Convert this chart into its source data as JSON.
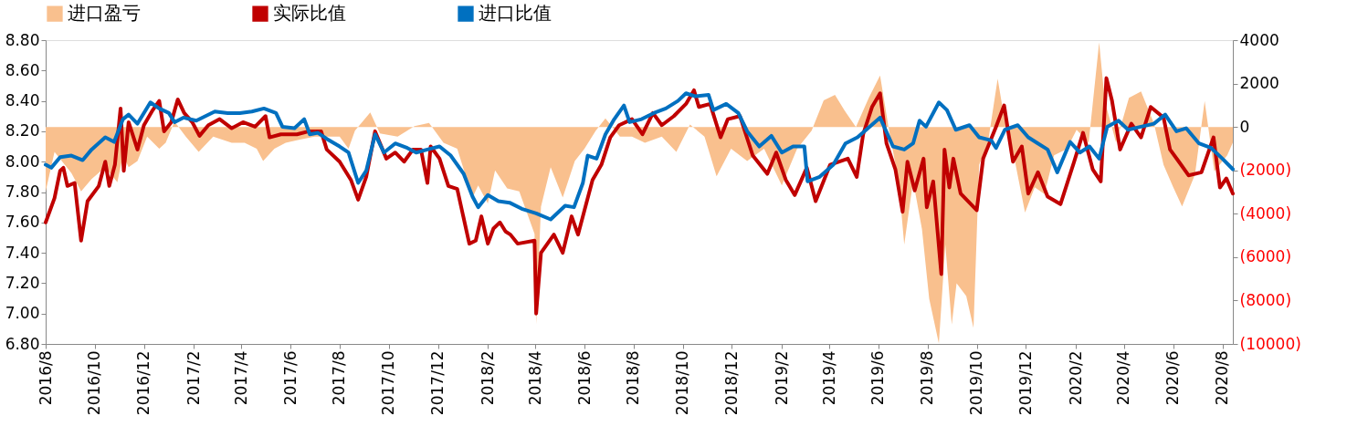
{
  "chart_data": {
    "type": "line",
    "xlim": [
      "2016-08-01",
      "2020-08-14"
    ],
    "xticks": [
      {
        "value": "2016-08",
        "label": "2016/8"
      },
      {
        "value": "2016-10",
        "label": "2016/10"
      },
      {
        "value": "2016-12",
        "label": "2016/12"
      },
      {
        "value": "2017-02",
        "label": "2017/2"
      },
      {
        "value": "2017-04",
        "label": "2017/4"
      },
      {
        "value": "2017-06",
        "label": "2017/6"
      },
      {
        "value": "2017-08",
        "label": "2017/8"
      },
      {
        "value": "2017-10",
        "label": "2017/10"
      },
      {
        "value": "2017-12",
        "label": "2017/12"
      },
      {
        "value": "2018-02",
        "label": "2018/2"
      },
      {
        "value": "2018-04",
        "label": "2018/4"
      },
      {
        "value": "2018-06",
        "label": "2018/6"
      },
      {
        "value": "2018-08",
        "label": "2018/8"
      },
      {
        "value": "2018-10",
        "label": "2018/10"
      },
      {
        "value": "2018-12",
        "label": "2018/12"
      },
      {
        "value": "2019-02",
        "label": "2019/2"
      },
      {
        "value": "2019-04",
        "label": "2019/4"
      },
      {
        "value": "2019-06",
        "label": "2019/6"
      },
      {
        "value": "2019-08",
        "label": "2019/8"
      },
      {
        "value": "2019-10",
        "label": "2019/10"
      },
      {
        "value": "2019-12",
        "label": "2019/12"
      },
      {
        "value": "2020-02",
        "label": "2020/2"
      },
      {
        "value": "2020-04",
        "label": "2020/4"
      },
      {
        "value": "2020-06",
        "label": "2020/6"
      },
      {
        "value": "2020-08",
        "label": "2020/8"
      }
    ],
    "ylim": [
      6.8,
      8.8
    ],
    "yticks": [
      {
        "value": 6.8,
        "label": "6.80"
      },
      {
        "value": 7.0,
        "label": "7.00"
      },
      {
        "value": 7.2,
        "label": "7.20"
      },
      {
        "value": 7.4,
        "label": "7.40"
      },
      {
        "value": 7.6,
        "label": "7.60"
      },
      {
        "value": 7.8,
        "label": "7.80"
      },
      {
        "value": 8.0,
        "label": "8.00"
      },
      {
        "value": 8.2,
        "label": "8.20"
      },
      {
        "value": 8.4,
        "label": "8.40"
      },
      {
        "value": 8.6,
        "label": "8.60"
      },
      {
        "value": 8.8,
        "label": "8.80"
      }
    ],
    "y2lim": [
      -10000,
      4000
    ],
    "y2ticks": [
      {
        "value": -10000,
        "label": "(10000)"
      },
      {
        "value": -8000,
        "label": "(8000)"
      },
      {
        "value": -6000,
        "label": "(6000)"
      },
      {
        "value": -4000,
        "label": "(4000)"
      },
      {
        "value": -2000,
        "label": "(2000)"
      },
      0,
      2000,
      4000
    ],
    "legend": "top",
    "marker": "none",
    "line_style": "solid",
    "series": [
      {
        "name": "进口盈亏",
        "type": "area",
        "axis": "y2",
        "color": "#f9c08e",
        "x": [
          "2016-08-01",
          "2016-08-12",
          "2016-09-02",
          "2016-09-14",
          "2016-09-27",
          "2016-10-14",
          "2016-10-29",
          "2016-11-05",
          "2016-11-12",
          "2016-11-23",
          "2016-12-05",
          "2016-12-20",
          "2016-12-28",
          "2017-01-08",
          "2017-01-22",
          "2017-02-07",
          "2017-02-25",
          "2017-03-20",
          "2017-04-05",
          "2017-04-20",
          "2017-04-28",
          "2017-05-12",
          "2017-05-26",
          "2017-06-10",
          "2017-07-01",
          "2017-07-16",
          "2017-08-01",
          "2017-08-12",
          "2017-08-20",
          "2017-09-08",
          "2017-09-20",
          "2017-10-12",
          "2017-11-02",
          "2017-11-20",
          "2017-12-08",
          "2017-12-25",
          "2018-01-13",
          "2018-01-20",
          "2018-02-01",
          "2018-02-10",
          "2018-02-25",
          "2018-03-12",
          "2018-03-31",
          "2018-04-02",
          "2018-04-08",
          "2018-04-20",
          "2018-05-05",
          "2018-05-20",
          "2018-06-01",
          "2018-06-15",
          "2018-06-27",
          "2018-07-15",
          "2018-07-30",
          "2018-08-15",
          "2018-09-05",
          "2018-09-23",
          "2018-10-10",
          "2018-10-28",
          "2018-11-12",
          "2018-11-30",
          "2018-12-20",
          "2019-01-10",
          "2019-02-01",
          "2019-02-20",
          "2019-03-10",
          "2019-03-25",
          "2019-04-08",
          "2019-04-20",
          "2019-05-04",
          "2019-05-20",
          "2019-06-03",
          "2019-06-14",
          "2019-06-26",
          "2019-07-03",
          "2019-07-14",
          "2019-07-25",
          "2019-08-03",
          "2019-08-15",
          "2019-08-23",
          "2019-08-31",
          "2019-09-06",
          "2019-09-18",
          "2019-09-27",
          "2019-10-04",
          "2019-10-15",
          "2019-10-27",
          "2019-11-04",
          "2019-11-16",
          "2019-11-30",
          "2019-12-12",
          "2019-12-24",
          "2020-01-05",
          "2020-01-21",
          "2020-02-02",
          "2020-02-17",
          "2020-03-01",
          "2020-03-08",
          "2020-03-22",
          "2020-04-07",
          "2020-04-22",
          "2020-05-08",
          "2020-05-20",
          "2020-06-01",
          "2020-06-12",
          "2020-06-28",
          "2020-07-10",
          "2020-07-22",
          "2020-08-07",
          "2020-08-14"
        ],
        "values": [
          -2970,
          -1150,
          -2130,
          -2970,
          -2400,
          -1850,
          -2550,
          -1290,
          -1850,
          -1570,
          -450,
          -1000,
          -730,
          250,
          -450,
          -1150,
          -450,
          -730,
          -730,
          -1000,
          -1570,
          -1000,
          -730,
          -600,
          -450,
          -450,
          -450,
          -1000,
          -170,
          670,
          -300,
          -450,
          40,
          180,
          -730,
          -1000,
          -3250,
          -2690,
          -3530,
          -2000,
          -2830,
          -2970,
          -4930,
          -9100,
          -3670,
          -1850,
          -3250,
          -1570,
          -1000,
          -170,
          390,
          -450,
          -450,
          -730,
          -450,
          -1150,
          110,
          -450,
          -2270,
          -1000,
          -1570,
          -1000,
          -2690,
          -1000,
          -170,
          1230,
          1480,
          750,
          0,
          1340,
          2370,
          -130,
          -2480,
          -5420,
          -2480,
          -4700,
          -7920,
          -9980,
          -5420,
          -9110,
          -7200,
          -7790,
          -9260,
          -1750,
          -720,
          2220,
          460,
          -1310,
          -3950,
          -2780,
          -3090,
          -1310,
          -1010,
          -130,
          -720,
          3900,
          1190,
          -720,
          1340,
          1630,
          160,
          -1750,
          -2780,
          -3660,
          -2190,
          1190,
          -2040,
          -1310,
          -720
        ]
      },
      {
        "name": "实际比值",
        "color": "#c00000",
        "x": [
          "2016-08-01",
          "2016-08-12",
          "2016-08-19",
          "2016-08-23",
          "2016-08-28",
          "2016-09-06",
          "2016-09-14",
          "2016-09-22",
          "2016-10-06",
          "2016-10-14",
          "2016-10-19",
          "2016-10-26",
          "2016-11-02",
          "2016-11-06",
          "2016-11-12",
          "2016-11-23",
          "2016-12-01",
          "2016-12-12",
          "2016-12-20",
          "2016-12-26",
          "2017-01-04",
          "2017-01-12",
          "2017-01-20",
          "2017-01-30",
          "2017-02-08",
          "2017-02-19",
          "2017-03-05",
          "2017-03-20",
          "2017-04-03",
          "2017-04-18",
          "2017-05-01",
          "2017-05-06",
          "2017-05-20",
          "2017-06-09",
          "2017-06-24",
          "2017-07-09",
          "2017-07-16",
          "2017-08-01",
          "2017-08-15",
          "2017-08-24",
          "2017-09-03",
          "2017-09-14",
          "2017-09-28",
          "2017-10-09",
          "2017-10-20",
          "2017-10-31",
          "2017-11-10",
          "2017-11-18",
          "2017-11-22",
          "2017-12-03",
          "2017-12-14",
          "2017-12-25",
          "2018-01-09",
          "2018-01-17",
          "2018-01-24",
          "2018-02-01",
          "2018-02-08",
          "2018-02-16",
          "2018-02-23",
          "2018-03-01",
          "2018-03-10",
          "2018-03-31",
          "2018-04-02",
          "2018-04-08",
          "2018-04-24",
          "2018-05-05",
          "2018-05-16",
          "2018-05-24",
          "2018-06-01",
          "2018-06-11",
          "2018-06-22",
          "2018-07-03",
          "2018-07-14",
          "2018-07-30",
          "2018-08-12",
          "2018-08-25",
          "2018-09-05",
          "2018-09-20",
          "2018-10-05",
          "2018-10-15",
          "2018-10-21",
          "2018-11-04",
          "2018-11-17",
          "2018-11-26",
          "2018-12-11",
          "2018-12-27",
          "2019-01-14",
          "2019-01-25",
          "2019-02-06",
          "2019-02-17",
          "2019-03-04",
          "2019-03-15",
          "2019-04-02",
          "2019-04-24",
          "2019-05-05",
          "2019-05-13",
          "2019-05-24",
          "2019-06-03",
          "2019-06-11",
          "2019-06-22",
          "2019-07-01",
          "2019-07-07",
          "2019-07-16",
          "2019-07-27",
          "2019-07-31",
          "2019-08-08",
          "2019-08-18",
          "2019-08-22",
          "2019-08-28",
          "2019-09-02",
          "2019-09-11",
          "2019-10-01",
          "2019-10-09",
          "2019-10-25",
          "2019-11-04",
          "2019-11-15",
          "2019-11-26",
          "2019-12-04",
          "2019-12-16",
          "2019-12-28",
          "2020-01-13",
          "2020-01-30",
          "2020-02-10",
          "2020-02-22",
          "2020-03-03",
          "2020-03-10",
          "2020-03-17",
          "2020-03-27",
          "2020-04-10",
          "2020-04-22",
          "2020-05-04",
          "2020-05-20",
          "2020-05-28",
          "2020-06-08",
          "2020-06-20",
          "2020-07-06",
          "2020-07-21",
          "2020-07-29",
          "2020-08-06",
          "2020-08-14"
        ],
        "values": [
          7.6,
          7.76,
          7.94,
          7.96,
          7.84,
          7.86,
          7.48,
          7.74,
          7.84,
          8.0,
          7.84,
          7.98,
          8.35,
          7.94,
          8.26,
          8.08,
          8.24,
          8.34,
          8.4,
          8.2,
          8.26,
          8.41,
          8.32,
          8.26,
          8.17,
          8.24,
          8.28,
          8.22,
          8.26,
          8.23,
          8.3,
          8.16,
          8.18,
          8.18,
          8.2,
          8.2,
          8.08,
          8.0,
          7.88,
          7.75,
          7.9,
          8.2,
          8.02,
          8.06,
          8.0,
          8.08,
          8.08,
          7.86,
          8.1,
          8.02,
          7.84,
          7.82,
          7.46,
          7.48,
          7.64,
          7.46,
          7.56,
          7.6,
          7.54,
          7.52,
          7.46,
          7.48,
          7.0,
          7.4,
          7.52,
          7.4,
          7.64,
          7.52,
          7.68,
          7.88,
          7.98,
          8.16,
          8.24,
          8.28,
          8.18,
          8.32,
          8.24,
          8.3,
          8.38,
          8.47,
          8.36,
          8.38,
          8.16,
          8.28,
          8.3,
          8.04,
          7.92,
          8.06,
          7.88,
          7.78,
          7.96,
          7.74,
          7.98,
          8.02,
          7.9,
          8.18,
          8.36,
          8.45,
          8.12,
          7.95,
          7.67,
          8.0,
          7.81,
          8.02,
          7.7,
          7.87,
          7.26,
          8.08,
          7.83,
          8.02,
          7.79,
          7.68,
          8.02,
          8.23,
          8.37,
          8.0,
          8.1,
          7.79,
          7.93,
          7.77,
          7.72,
          8.0,
          8.19,
          7.95,
          7.87,
          8.55,
          8.4,
          8.08,
          8.25,
          8.16,
          8.36,
          8.29,
          8.08,
          8.0,
          7.91,
          7.93,
          8.16,
          7.83,
          7.89,
          7.79
        ]
      },
      {
        "name": "进口比值",
        "color": "#0070c0",
        "x": [
          "2016-08-01",
          "2016-08-08",
          "2016-08-19",
          "2016-09-02",
          "2016-09-16",
          "2016-09-27",
          "2016-10-14",
          "2016-10-25",
          "2016-11-05",
          "2016-11-12",
          "2016-11-23",
          "2016-12-09",
          "2016-12-20",
          "2017-01-01",
          "2017-01-08",
          "2017-01-19",
          "2017-02-04",
          "2017-02-27",
          "2017-03-15",
          "2017-03-30",
          "2017-04-14",
          "2017-04-29",
          "2017-05-14",
          "2017-05-22",
          "2017-06-06",
          "2017-06-18",
          "2017-06-25",
          "2017-07-05",
          "2017-07-16",
          "2017-08-01",
          "2017-08-12",
          "2017-08-24",
          "2017-09-03",
          "2017-09-14",
          "2017-09-25",
          "2017-10-09",
          "2017-10-24",
          "2017-11-04",
          "2017-11-18",
          "2017-12-03",
          "2017-12-17",
          "2018-01-02",
          "2018-01-13",
          "2018-01-20",
          "2018-02-01",
          "2018-02-14",
          "2018-02-28",
          "2018-03-15",
          "2018-04-02",
          "2018-04-20",
          "2018-05-08",
          "2018-05-19",
          "2018-05-30",
          "2018-06-05",
          "2018-06-16",
          "2018-06-27",
          "2018-07-08",
          "2018-07-20",
          "2018-07-27",
          "2018-08-11",
          "2018-08-26",
          "2018-09-10",
          "2018-09-25",
          "2018-10-05",
          "2018-10-17",
          "2018-11-02",
          "2018-11-08",
          "2018-11-24",
          "2018-12-09",
          "2018-12-20",
          "2019-01-04",
          "2019-01-19",
          "2019-02-01",
          "2019-02-15",
          "2019-03-01",
          "2019-03-05",
          "2019-03-20",
          "2019-04-06",
          "2019-04-21",
          "2019-05-06",
          "2019-06-03",
          "2019-06-19",
          "2019-07-03",
          "2019-07-14",
          "2019-07-22",
          "2019-07-30",
          "2019-08-15",
          "2019-08-25",
          "2019-09-05",
          "2019-09-22",
          "2019-10-04",
          "2019-10-19",
          "2019-10-25",
          "2019-11-05",
          "2019-11-21",
          "2019-12-04",
          "2019-12-16",
          "2019-12-28",
          "2020-01-09",
          "2020-01-25",
          "2020-02-06",
          "2020-02-18",
          "2020-03-01",
          "2020-03-11",
          "2020-03-25",
          "2020-04-06",
          "2020-04-22",
          "2020-05-08",
          "2020-05-22",
          "2020-06-05",
          "2020-06-17",
          "2020-07-03",
          "2020-07-18",
          "2020-08-01",
          "2020-08-14"
        ],
        "values": [
          7.98,
          7.96,
          8.03,
          8.04,
          8.01,
          8.08,
          8.16,
          8.13,
          8.28,
          8.31,
          8.25,
          8.39,
          8.35,
          8.32,
          8.26,
          8.29,
          8.27,
          8.33,
          8.32,
          8.32,
          8.33,
          8.35,
          8.32,
          8.23,
          8.22,
          8.28,
          8.18,
          8.19,
          8.15,
          8.1,
          8.06,
          7.86,
          7.94,
          8.18,
          8.06,
          8.12,
          8.09,
          8.06,
          8.08,
          8.1,
          8.04,
          7.92,
          7.77,
          7.7,
          7.78,
          7.74,
          7.73,
          7.69,
          7.66,
          7.62,
          7.71,
          7.7,
          7.86,
          8.04,
          8.02,
          8.18,
          8.28,
          8.37,
          8.26,
          8.28,
          8.32,
          8.35,
          8.4,
          8.45,
          8.43,
          8.44,
          8.34,
          8.38,
          8.32,
          8.2,
          8.1,
          8.17,
          8.06,
          8.1,
          8.1,
          7.87,
          7.9,
          7.98,
          8.12,
          8.16,
          8.29,
          8.1,
          8.08,
          8.12,
          8.27,
          8.23,
          8.39,
          8.34,
          8.21,
          8.24,
          8.16,
          8.14,
          8.09,
          8.21,
          8.24,
          8.16,
          8.12,
          8.08,
          7.93,
          8.13,
          8.06,
          8.1,
          8.02,
          8.23,
          8.27,
          8.21,
          8.23,
          8.25,
          8.31,
          8.2,
          8.22,
          8.12,
          8.09,
          8.02,
          7.95
        ]
      }
    ]
  }
}
